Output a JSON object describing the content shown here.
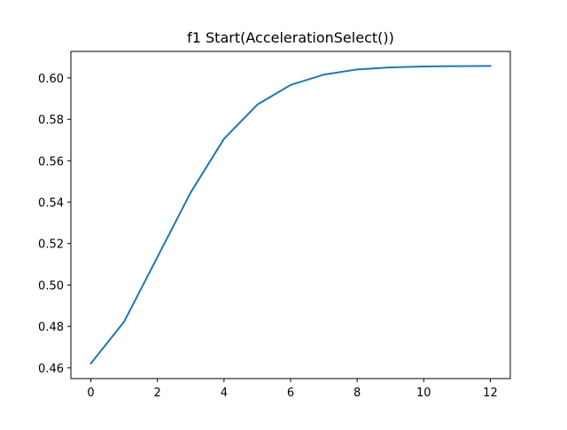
{
  "chart_data": {
    "type": "line",
    "title": "f1 Start(AccelerationSelect())",
    "xlabel": "",
    "ylabel": "",
    "xlim": [
      -0.6,
      12.6
    ],
    "ylim": [
      0.4548,
      0.6128
    ],
    "grid": false,
    "x_ticks": [
      0,
      2,
      4,
      6,
      8,
      10,
      12
    ],
    "x_tick_labels": [
      "0",
      "2",
      "4",
      "6",
      "8",
      "10",
      "12"
    ],
    "y_ticks": [
      0.46,
      0.48,
      0.5,
      0.52,
      0.54,
      0.56,
      0.58,
      0.6
    ],
    "y_tick_labels": [
      "0.46",
      "0.48",
      "0.50",
      "0.52",
      "0.54",
      "0.56",
      "0.58",
      "0.60"
    ],
    "series": [
      {
        "color": "#1f77b4",
        "x": [
          0,
          1,
          2,
          3,
          4,
          5,
          6,
          7,
          8,
          9,
          10,
          11,
          12
        ],
        "values": [
          0.4621,
          0.4823,
          0.5135,
          0.5447,
          0.5706,
          0.5871,
          0.5966,
          0.6016,
          0.6041,
          0.6051,
          0.6055,
          0.6057,
          0.6058
        ]
      }
    ]
  }
}
